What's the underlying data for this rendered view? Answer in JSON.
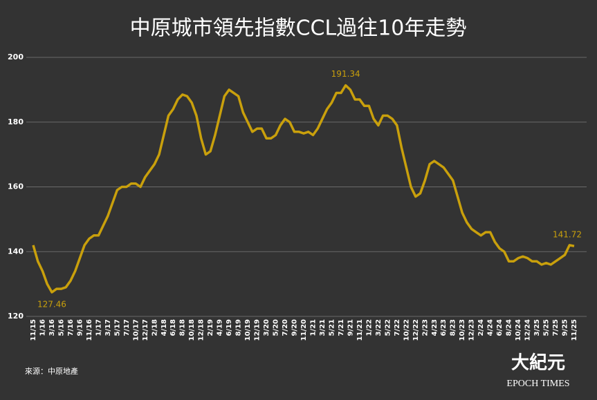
{
  "chart_data": {
    "type": "line",
    "title": "中原城市領先指數CCL過往10年走勢",
    "categories": [
      "11/15",
      null,
      "1/16",
      null,
      "3/16",
      null,
      "5/16",
      null,
      "7/16",
      null,
      "9/16",
      null,
      "11/16",
      null,
      "1/17",
      null,
      "3/17",
      null,
      "5/17",
      null,
      "7/17",
      null,
      "10/17",
      null,
      "12/17",
      null,
      "2/18",
      null,
      "4/18",
      null,
      "6/18",
      null,
      "8/18",
      null,
      "10/18",
      null,
      "12/18",
      null,
      "2/19",
      null,
      "4/19",
      null,
      "6/19",
      null,
      "8/19",
      null,
      "10/19",
      null,
      "12/19",
      null,
      "3/20",
      null,
      "5/20",
      null,
      "7/20",
      null,
      "9/20",
      null,
      "11/20",
      null,
      "1/21",
      null,
      "3/21",
      null,
      "5/21",
      null,
      "7/21",
      null,
      "9/21",
      null,
      "11/21",
      null,
      "1/22",
      null,
      "3/22",
      null,
      "5/22",
      null,
      "7/22",
      null,
      "10/22",
      null,
      "12/22",
      null,
      "2/23",
      null,
      "4/23",
      null,
      "6/23",
      null,
      "8/23",
      null,
      "10/23",
      null,
      "12/23",
      null,
      "2/24",
      null,
      "4/24",
      null,
      "6/24",
      null,
      "8/24",
      null,
      "10/24",
      null,
      "12/24",
      null,
      "3/25",
      null,
      "5/25",
      null,
      "7/25",
      null,
      "9/25",
      null,
      "11/25"
    ],
    "values": [
      142,
      137,
      134,
      130,
      127.46,
      128.5,
      128.5,
      129,
      131,
      134,
      138,
      142,
      144,
      145,
      145,
      148,
      151,
      155,
      159,
      160,
      160,
      161,
      161,
      160,
      163,
      165,
      167,
      170,
      176,
      182,
      184,
      187,
      188.5,
      188,
      186,
      182,
      175,
      170,
      171,
      176,
      182,
      188,
      190,
      189,
      188,
      183,
      180,
      177,
      178,
      178,
      175,
      175,
      176,
      179,
      181,
      180,
      177,
      177,
      176.5,
      177,
      176,
      178,
      181,
      184,
      186,
      189,
      189,
      191.34,
      190,
      187,
      187,
      185,
      185,
      181,
      179,
      182,
      182,
      181,
      179,
      172,
      166,
      160,
      157,
      158,
      162,
      167,
      168,
      167,
      166,
      164,
      162,
      157,
      152,
      149,
      147,
      146,
      145,
      146,
      146,
      143,
      141,
      140,
      137,
      137,
      138,
      138.5,
      138,
      137,
      137,
      136,
      136.5,
      136,
      137,
      138,
      139,
      142,
      141.72
    ],
    "value_labels": [
      null,
      null,
      null,
      null,
      "127.46",
      null,
      null,
      null,
      null,
      null,
      null,
      null,
      null,
      null,
      null,
      null,
      null,
      null,
      null,
      null,
      null,
      null,
      null,
      null,
      null,
      null,
      null,
      null,
      null,
      null,
      null,
      null,
      null,
      null,
      null,
      null,
      null,
      null,
      null,
      null,
      null,
      null,
      null,
      null,
      null,
      null,
      null,
      null,
      null,
      null,
      null,
      null,
      null,
      null,
      null,
      null,
      null,
      null,
      null,
      null,
      null,
      null,
      null,
      null,
      null,
      null,
      null,
      "191.34",
      null,
      null,
      null,
      null,
      null,
      null,
      null,
      null,
      null,
      null,
      null,
      null,
      null,
      null,
      null,
      null,
      null,
      null,
      null,
      null,
      null,
      null,
      null,
      null,
      null,
      null,
      null,
      null,
      null,
      null,
      null,
      null,
      null,
      null,
      null,
      null,
      null,
      null,
      null,
      null,
      null,
      null,
      null,
      null,
      null,
      null,
      null,
      null,
      "141.72"
    ],
    "color": "#c9a00c",
    "ylim": [
      120,
      200
    ],
    "yticks": [
      120,
      140,
      160,
      180,
      200
    ],
    "grid": true
  },
  "source": "來源：中原地產",
  "logo": {
    "name": "大紀元",
    "sub": "EPOCH TIMES"
  }
}
